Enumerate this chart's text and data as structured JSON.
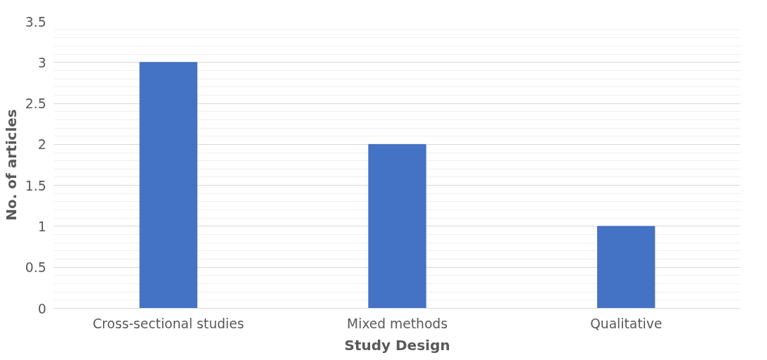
{
  "chart_data": {
    "type": "bar",
    "xlabel": "Study Design",
    "ylabel": "No. of articles",
    "categories": [
      "Cross-sectional studies",
      "Mixed methods",
      "Qualitative"
    ],
    "values": [
      3,
      2,
      1
    ],
    "color": "#4472c4",
    "ylim": [
      0,
      3.5
    ],
    "yticks": [
      0,
      0.5,
      1,
      1.5,
      2,
      2.5,
      3,
      3.5
    ],
    "grid": "y"
  }
}
